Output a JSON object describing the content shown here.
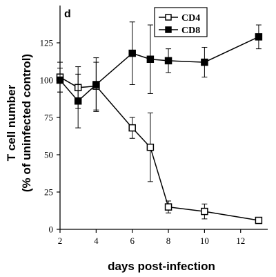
{
  "chart_data": {
    "type": "line",
    "panel_label": "d",
    "xlabel": "days post-infection",
    "ylabel_line1": "T cell number",
    "ylabel_line2": "(% of uninfected control)",
    "xlim": [
      2,
      13.5
    ],
    "ylim": [
      0,
      150
    ],
    "xticks": [
      2,
      4,
      6,
      8,
      10,
      12
    ],
    "yticks": [
      0,
      25,
      50,
      75,
      100,
      125
    ],
    "grid": false,
    "legend_position": "top-center",
    "series": [
      {
        "name": "CD4",
        "marker": "open-square",
        "x": [
          2,
          3,
          4,
          6,
          7,
          8,
          10,
          13
        ],
        "y": [
          102,
          95,
          96,
          68,
          55,
          15,
          12,
          6
        ],
        "err": [
          10,
          14,
          16,
          7,
          23,
          4,
          5,
          2
        ]
      },
      {
        "name": "CD8",
        "marker": "filled-square",
        "x": [
          2,
          3,
          4,
          6,
          7,
          8,
          10,
          13
        ],
        "y": [
          100,
          86,
          97,
          118,
          114,
          113,
          112,
          129
        ],
        "err": [
          8,
          18,
          18,
          21,
          23,
          8,
          10,
          8
        ]
      }
    ]
  }
}
